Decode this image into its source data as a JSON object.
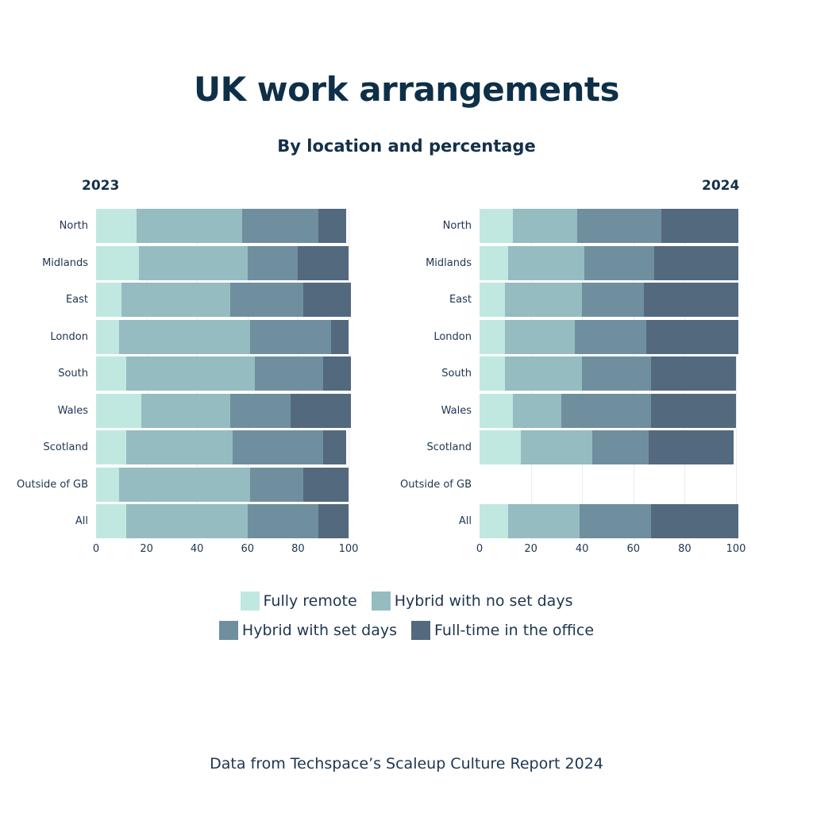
{
  "header": {
    "title": "UK work arrangements",
    "subtitle": "By location and percentage"
  },
  "colors": {
    "fully_remote": "#C0E8E0",
    "hybrid_no_set_days": "#95BCC0",
    "hybrid_set_days": "#6F8F9E",
    "full_time_office": "#53697E",
    "text": "#13304A"
  },
  "legend": {
    "items": [
      {
        "label": "Fully remote",
        "color": "#C0E8E0"
      },
      {
        "label": "Hybrid with no set days",
        "color": "#95BCC0"
      },
      {
        "label": "Hybrid with set days",
        "color": "#6F8F9E"
      },
      {
        "label": "Full-time in the office",
        "color": "#53697E"
      }
    ]
  },
  "footer": {
    "source": "Data from Techspace’s Scaleup Culture Report 2024"
  },
  "chart_data": [
    {
      "type": "bar",
      "orientation": "horizontal",
      "stacked": true,
      "title": "2023",
      "categories": [
        "North",
        "Midlands",
        "East",
        "London",
        "South",
        "Wales",
        "Scotland",
        "Outside of GB",
        "All"
      ],
      "series": [
        {
          "name": "Fully remote",
          "values": [
            16,
            17,
            10,
            9,
            12,
            18,
            12,
            9,
            12
          ]
        },
        {
          "name": "Hybrid with no set days",
          "values": [
            42,
            43,
            43,
            52,
            51,
            35,
            42,
            52,
            48
          ]
        },
        {
          "name": "Hybrid with set days",
          "values": [
            30,
            20,
            29,
            32,
            27,
            24,
            36,
            21,
            28
          ]
        },
        {
          "name": "Full-time in the office",
          "values": [
            11,
            20,
            19,
            7,
            11,
            24,
            9,
            18,
            12
          ]
        }
      ],
      "xlabel": "",
      "ylabel": "",
      "xlim": [
        0,
        100
      ],
      "xticks": [
        "0",
        "20",
        "40",
        "60",
        "80",
        "100"
      ],
      "grid": true
    },
    {
      "type": "bar",
      "orientation": "horizontal",
      "stacked": true,
      "title": "2024",
      "categories": [
        "North",
        "Midlands",
        "East",
        "London",
        "South",
        "Wales",
        "Scotland",
        "Outside of GB",
        "All"
      ],
      "series": [
        {
          "name": "Fully remote",
          "values": [
            13,
            11,
            10,
            10,
            10,
            13,
            16,
            null,
            11
          ]
        },
        {
          "name": "Hybrid with no set days",
          "values": [
            25,
            30,
            30,
            27,
            30,
            19,
            28,
            null,
            28
          ]
        },
        {
          "name": "Hybrid with set days",
          "values": [
            33,
            27,
            24,
            28,
            27,
            35,
            22,
            null,
            28
          ]
        },
        {
          "name": "Full-time in the office",
          "values": [
            30,
            33,
            37,
            36,
            33,
            33,
            33,
            null,
            34
          ]
        }
      ],
      "xlabel": "",
      "ylabel": "",
      "xlim": [
        0,
        100
      ],
      "xticks": [
        "0",
        "20",
        "40",
        "60",
        "80",
        "100"
      ],
      "grid": true
    }
  ]
}
